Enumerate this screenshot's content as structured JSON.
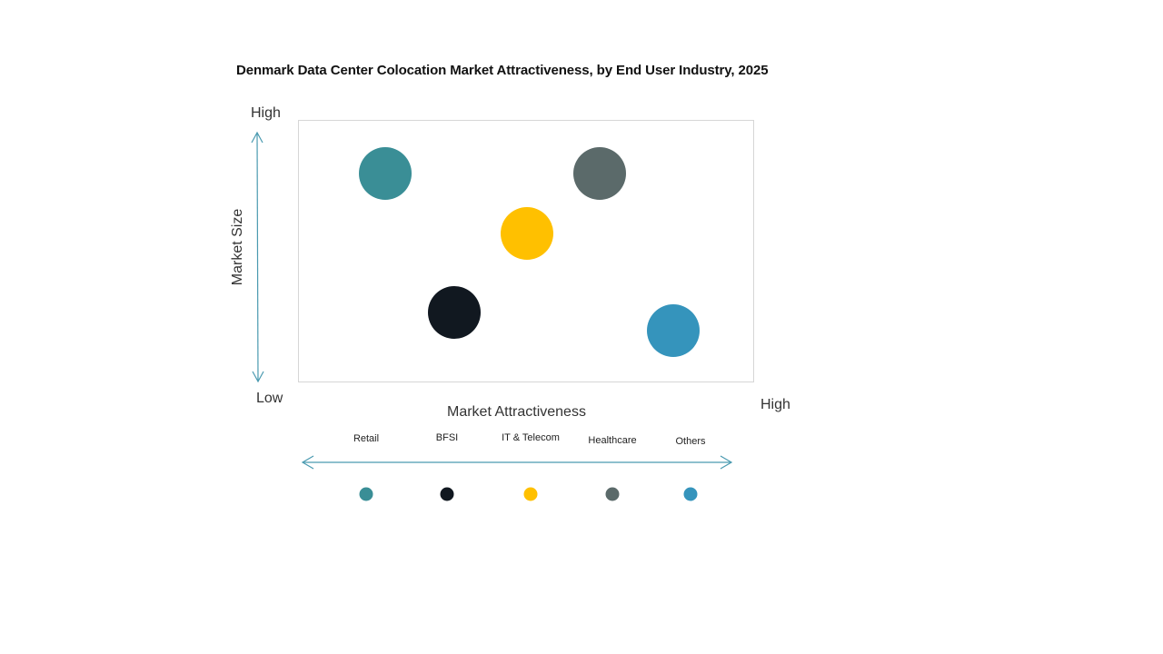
{
  "chart_data": {
    "type": "scatter",
    "title": "Denmark Data Center Colocation Market Attractiveness,  by End User Industry, 2025",
    "xlabel": "Market Attractiveness",
    "ylabel": "Market Size",
    "x_axis": {
      "low_label": "Low",
      "high_label": "High"
    },
    "y_axis": {
      "low_label": "Low",
      "high_label": "High"
    },
    "xlim": [
      0,
      100
    ],
    "ylim": [
      0,
      100
    ],
    "grid": false,
    "legend_position": "bottom",
    "series": [
      {
        "name": "Retail",
        "x": 19,
        "y": 80,
        "color": "#3A8E96"
      },
      {
        "name": "BFSI",
        "x": 34,
        "y": 27,
        "color": "#111820"
      },
      {
        "name": "IT & Telecom",
        "x": 50,
        "y": 57,
        "color": "#FFC000"
      },
      {
        "name": "Healthcare",
        "x": 66,
        "y": 80,
        "color": "#5B6A6A"
      },
      {
        "name": "Others",
        "x": 82,
        "y": 20,
        "color": "#3594BC"
      }
    ]
  },
  "labels": {
    "title": "Denmark Data Center Colocation Market Attractiveness,  by End User Industry, 2025",
    "y_high": "High",
    "y_low": "Low",
    "y_axis_title": "Market Size",
    "x_axis_title": "Market Attractiveness",
    "x_high": "High"
  },
  "legend": [
    {
      "label": "Retail",
      "color": "#3A8E96"
    },
    {
      "label": "BFSI",
      "color": "#111820"
    },
    {
      "label": "IT & Telecom",
      "color": "#FFC000"
    },
    {
      "label": "Healthcare",
      "color": "#5B6A6A"
    },
    {
      "label": "Others",
      "color": "#3594BC"
    }
  ],
  "axis_color": "#4A9AB0"
}
